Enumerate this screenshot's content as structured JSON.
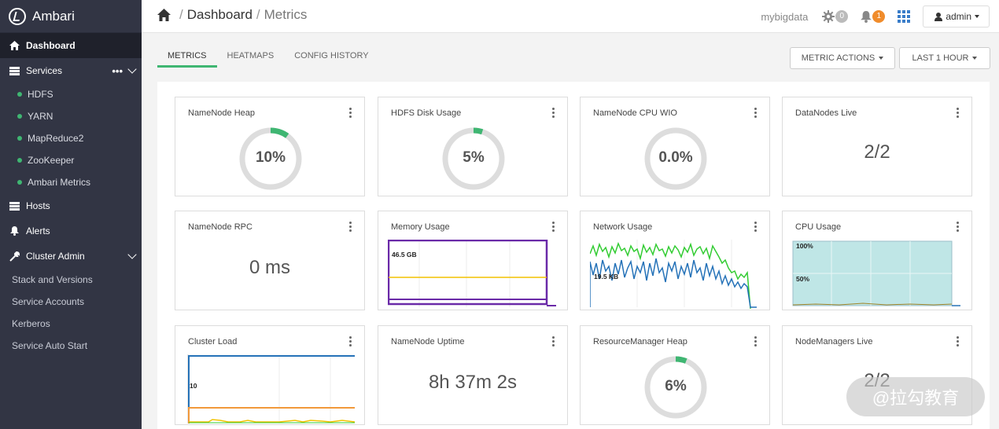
{
  "app": {
    "name": "Ambari"
  },
  "sidebar": {
    "dashboard": "Dashboard",
    "services": "Services",
    "service_items": [
      "HDFS",
      "YARN",
      "MapReduce2",
      "ZooKeeper",
      "Ambari Metrics"
    ],
    "hosts": "Hosts",
    "alerts": "Alerts",
    "cluster_admin": "Cluster Admin",
    "admin_items": [
      "Stack and Versions",
      "Service Accounts",
      "Kerberos",
      "Service Auto Start"
    ]
  },
  "header": {
    "breadcrumb_root": "Dashboard",
    "breadcrumb_current": "Metrics",
    "cluster_name": "mybigdata",
    "ops_count": "0",
    "alerts_count": "1",
    "user": "admin"
  },
  "tabs": [
    "METRICS",
    "HEATMAPS",
    "CONFIG HISTORY"
  ],
  "actions": {
    "metric_actions": "METRIC ACTIONS",
    "time_range": "LAST 1 HOUR"
  },
  "colors": {
    "sidebar": "#323544",
    "accent_green": "#3fb672",
    "badge_orange": "#f08c2c",
    "donut_track": "#dddddd"
  },
  "widgets": {
    "namenode_heap": {
      "title": "NameNode Heap",
      "value": "10%",
      "percent": 10
    },
    "hdfs_disk": {
      "title": "HDFS Disk Usage",
      "value": "5%",
      "percent": 5
    },
    "namenode_cpu": {
      "title": "NameNode CPU WIO",
      "value": "0.0%",
      "percent": 0
    },
    "datanodes_live": {
      "title": "DataNodes Live",
      "value": "2/2"
    },
    "namenode_rpc": {
      "title": "NameNode RPC",
      "value": "0 ms"
    },
    "memory_usage": {
      "title": "Memory Usage",
      "label": "46.5 GB"
    },
    "network_usage": {
      "title": "Network Usage",
      "label": "19.5 KB"
    },
    "cpu_usage": {
      "title": "CPU Usage",
      "label_top": "100%",
      "label_mid": "50%"
    },
    "cluster_load": {
      "title": "Cluster Load",
      "label": "10"
    },
    "namenode_uptime": {
      "title": "NameNode Uptime",
      "value": "8h 37m 2s"
    },
    "rm_heap": {
      "title": "ResourceManager Heap",
      "value": "6%",
      "percent": 6
    },
    "nodemanagers_live": {
      "title": "NodeManagers Live",
      "value": "2/2"
    }
  },
  "watermark": "@拉勾教育"
}
